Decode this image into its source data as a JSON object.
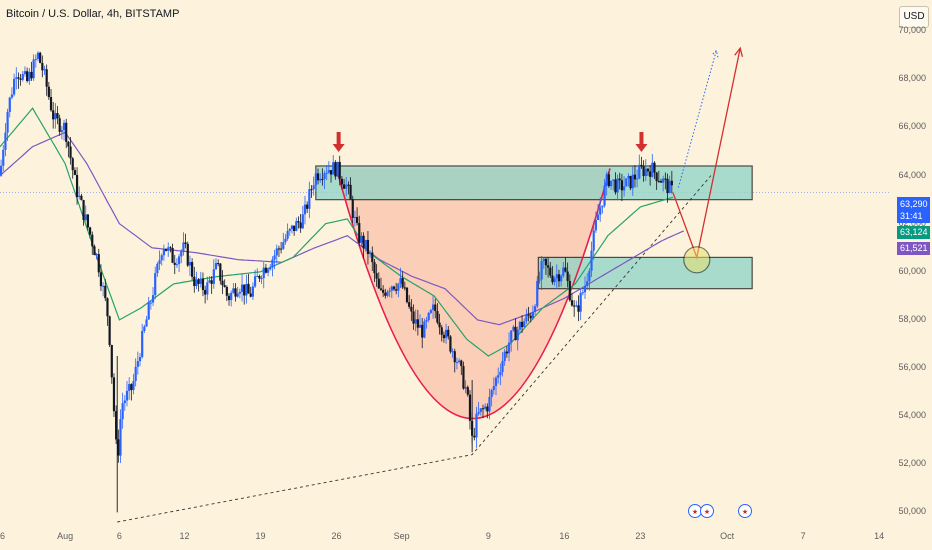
{
  "header": {
    "title": "Bitcoin / U.S. Dollar, 4h, BITSTAMP",
    "currency_button": "USD"
  },
  "price_tags": {
    "last_price": "63,290",
    "countdown": "31:41",
    "ma_fast": "63,124",
    "ma_slow": "61,521"
  },
  "colors": {
    "background": "#fdf3dc",
    "candle_up": "#2962ff",
    "candle_down": "#131722",
    "ma_fast": "#26a269",
    "ma_slow": "#7e57c2",
    "zone_fill": "#8ed4c8",
    "arc_fill": "#f9bfa6",
    "arc_line": "#e91e4d",
    "signal_arrow": "#d32f2f",
    "tag_blue": "#2962ff",
    "tag_green": "#089981",
    "tag_purple": "#7e57c2"
  },
  "events": [
    {
      "icon": "flag-us-icon"
    },
    {
      "icon": "flag-us-icon"
    },
    {
      "icon": "flag-us-icon"
    }
  ],
  "chart_data": {
    "type": "candlestick",
    "title": "Bitcoin / U.S. Dollar, 4h, BITSTAMP",
    "xlabel": "",
    "ylabel": "",
    "ylim": [
      49600,
      71300
    ],
    "y_ticks": [
      {
        "value": 50000,
        "label": "50,000"
      },
      {
        "value": 52000,
        "label": "52,000"
      },
      {
        "value": 54000,
        "label": "54,000"
      },
      {
        "value": 56000,
        "label": "56,000"
      },
      {
        "value": 58000,
        "label": "58,000"
      },
      {
        "value": 60000,
        "label": "60,000"
      },
      {
        "value": 62000,
        "label": "62,000"
      },
      {
        "value": 64000,
        "label": "64,000"
      },
      {
        "value": 66000,
        "label": "66,000"
      },
      {
        "value": 68000,
        "label": "68,000"
      },
      {
        "value": 70000,
        "label": "70,000"
      }
    ],
    "x_ticks": [
      {
        "t": 0,
        "label": "26"
      },
      {
        "t": 6,
        "label": "Aug"
      },
      {
        "t": 11,
        "label": "6"
      },
      {
        "t": 17,
        "label": "12"
      },
      {
        "t": 24,
        "label": "19"
      },
      {
        "t": 31,
        "label": "26"
      },
      {
        "t": 37,
        "label": "Sep"
      },
      {
        "t": 45,
        "label": "9"
      },
      {
        "t": 52,
        "label": "16"
      },
      {
        "t": 59,
        "label": "23"
      },
      {
        "t": 67,
        "label": "Oct"
      },
      {
        "t": 74,
        "label": "7"
      },
      {
        "t": 81,
        "label": "14"
      }
    ],
    "x_range": [
      0,
      82
    ],
    "close_anchors": [
      [
        0,
        64000
      ],
      [
        0.6,
        66500
      ],
      [
        1.5,
        68400
      ],
      [
        2.5,
        67900
      ],
      [
        3.5,
        69000
      ],
      [
        4,
        68300
      ],
      [
        5,
        66300
      ],
      [
        6,
        66000
      ],
      [
        7,
        63500
      ],
      [
        8,
        62000
      ],
      [
        9,
        60500
      ],
      [
        10,
        58000
      ],
      [
        10.8,
        52000
      ],
      [
        11.2,
        54500
      ],
      [
        12.2,
        55200
      ],
      [
        13,
        57000
      ],
      [
        14,
        59000
      ],
      [
        15,
        61200
      ],
      [
        16,
        60500
      ],
      [
        17,
        61000
      ],
      [
        18,
        59500
      ],
      [
        19,
        59300
      ],
      [
        20,
        60200
      ],
      [
        21,
        58900
      ],
      [
        22,
        59500
      ],
      [
        23,
        59000
      ],
      [
        24,
        60000
      ],
      [
        25,
        60500
      ],
      [
        26,
        61200
      ],
      [
        27,
        61800
      ],
      [
        28,
        62300
      ],
      [
        29,
        64000
      ],
      [
        30,
        64300
      ],
      [
        31,
        64300
      ],
      [
        32,
        63500
      ],
      [
        33,
        61500
      ],
      [
        34,
        60800
      ],
      [
        35,
        59000
      ],
      [
        36,
        59500
      ],
      [
        37,
        59500
      ],
      [
        38,
        58000
      ],
      [
        39,
        57500
      ],
      [
        40,
        58500
      ],
      [
        41,
        57400
      ],
      [
        42,
        56500
      ],
      [
        43,
        55000
      ],
      [
        43.5,
        53000
      ],
      [
        44,
        54000
      ],
      [
        45,
        54500
      ],
      [
        46,
        56000
      ],
      [
        47,
        57200
      ],
      [
        48,
        57800
      ],
      [
        49,
        58300
      ],
      [
        50,
        60300
      ],
      [
        51,
        59800
      ],
      [
        52,
        60100
      ],
      [
        53,
        58200
      ],
      [
        54,
        59600
      ],
      [
        55,
        62200
      ],
      [
        56,
        63900
      ],
      [
        57,
        63500
      ],
      [
        58,
        63700
      ],
      [
        59,
        64200
      ],
      [
        60,
        64300
      ],
      [
        61,
        63800
      ],
      [
        62,
        63300
      ]
    ],
    "ma_fast_anchors": [
      [
        0,
        65200
      ],
      [
        3,
        66800
      ],
      [
        6,
        64500
      ],
      [
        9,
        60500
      ],
      [
        11,
        58000
      ],
      [
        13,
        58500
      ],
      [
        16,
        59500
      ],
      [
        20,
        59800
      ],
      [
        24,
        60000
      ],
      [
        27,
        60600
      ],
      [
        30,
        62000
      ],
      [
        32,
        62200
      ],
      [
        34,
        60800
      ],
      [
        37,
        59800
      ],
      [
        40,
        59000
      ],
      [
        43,
        57200
      ],
      [
        45,
        56500
      ],
      [
        47,
        57000
      ],
      [
        50,
        58500
      ],
      [
        53,
        59500
      ],
      [
        56,
        61500
      ],
      [
        59,
        62700
      ],
      [
        62,
        63100
      ]
    ],
    "ma_slow_anchors": [
      [
        0,
        64000
      ],
      [
        3,
        65200
      ],
      [
        6,
        65800
      ],
      [
        8,
        64500
      ],
      [
        11,
        62000
      ],
      [
        14,
        61000
      ],
      [
        18,
        60800
      ],
      [
        22,
        60500
      ],
      [
        26,
        60400
      ],
      [
        29,
        61000
      ],
      [
        32,
        61500
      ],
      [
        35,
        60500
      ],
      [
        38,
        59800
      ],
      [
        41,
        59300
      ],
      [
        44,
        58000
      ],
      [
        46,
        57800
      ],
      [
        49,
        58300
      ],
      [
        52,
        58900
      ],
      [
        55,
        59700
      ],
      [
        58,
        60500
      ],
      [
        61,
        61300
      ],
      [
        63,
        61700
      ]
    ],
    "resistance_zone": {
      "t_start": 29.1,
      "t_end": 69.3,
      "y_low": 63000,
      "y_high": 64400
    },
    "support_zone": {
      "t_start": 49.6,
      "t_end": 69.3,
      "y_low": 59300,
      "y_high": 60600
    },
    "cup_arc": {
      "t_left": 31,
      "t_bottom": 43.5,
      "t_right": 56.2,
      "y_rim": 64300,
      "y_bottom": 53900
    },
    "trendline_lower": [
      [
        10.8,
        49600
      ],
      [
        43.5,
        52400
      ],
      [
        65.5,
        64000
      ]
    ],
    "forecast_path": [
      [
        62,
        63300
      ],
      [
        64.2,
        60600
      ],
      [
        68.2,
        69300
      ]
    ],
    "forecast_alt": [
      [
        62.5,
        63500
      ],
      [
        66,
        69200
      ]
    ],
    "down_markers": [
      {
        "t": 31.2,
        "y": 64900
      },
      {
        "t": 59.1,
        "y": 64900
      }
    ],
    "target_circle": {
      "t": 64.2,
      "y": 60500
    }
  }
}
